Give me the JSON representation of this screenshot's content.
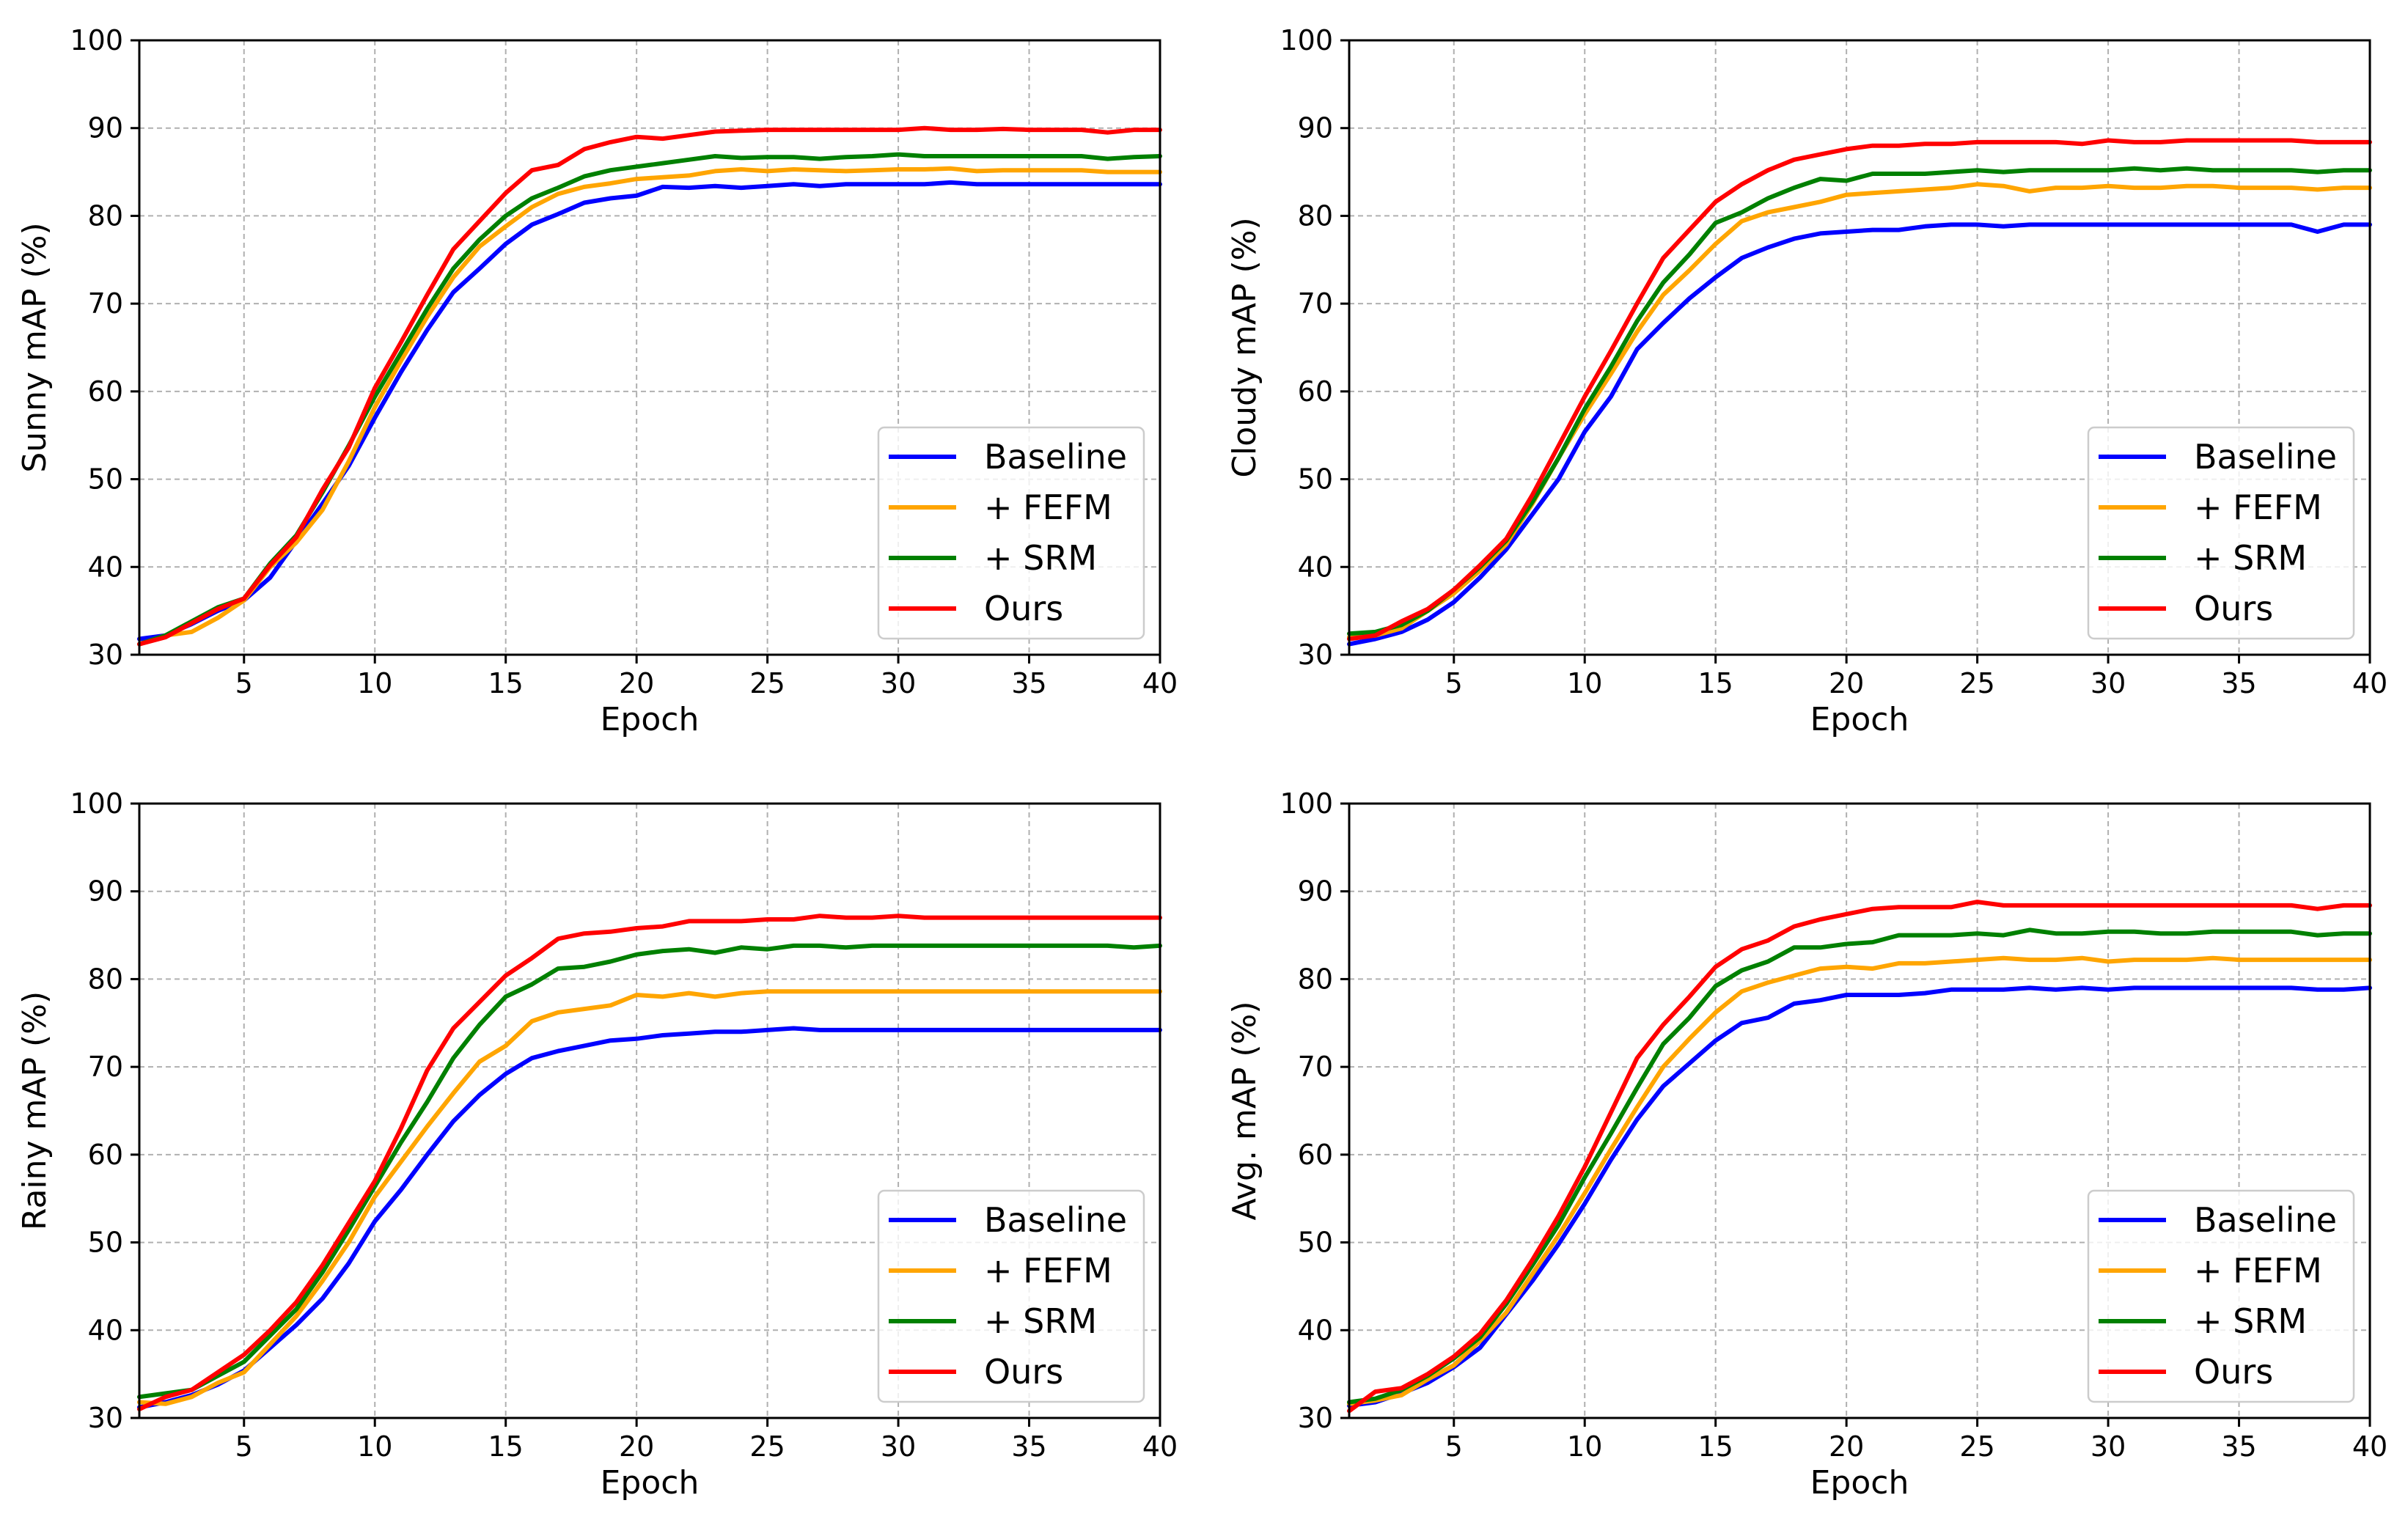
{
  "colors": {
    "baseline": "#0000ff",
    "fefm": "#ffa500",
    "srm": "#008000",
    "ours": "#ff0000"
  },
  "chart_data": [
    {
      "type": "line",
      "xlabel": "Epoch",
      "ylabel": "Sunny mAP (%)",
      "xlim": [
        1,
        40
      ],
      "ylim": [
        30,
        100
      ],
      "xticks": [
        5,
        10,
        15,
        20,
        25,
        30,
        35,
        40
      ],
      "yticks": [
        30,
        40,
        50,
        60,
        70,
        80,
        90,
        100
      ],
      "grid": true,
      "legend_position": "lower-right",
      "x": [
        1,
        2,
        3,
        4,
        5,
        6,
        7,
        8,
        9,
        10,
        11,
        12,
        13,
        14,
        15,
        16,
        17,
        18,
        19,
        20,
        21,
        22,
        23,
        24,
        25,
        26,
        27,
        28,
        29,
        30,
        31,
        32,
        33,
        34,
        35,
        36,
        37,
        38,
        39,
        40
      ],
      "series": [
        {
          "name": "Baseline",
          "color": "#0000ff",
          "values": [
            31.8,
            32.2,
            33.5,
            35.0,
            36.2,
            38.8,
            43.0,
            47.2,
            51.5,
            57.0,
            62.2,
            67.0,
            71.3,
            74.0,
            76.8,
            79.0,
            80.2,
            81.5,
            82.0,
            82.3,
            83.3,
            83.2,
            83.4,
            83.2,
            83.4,
            83.6,
            83.4,
            83.6,
            83.6,
            83.6,
            83.6,
            83.8,
            83.6,
            83.6,
            83.6,
            83.6,
            83.6,
            83.6,
            83.6,
            83.6
          ]
        },
        {
          "name": "+ FEFM",
          "color": "#ffa500",
          "values": [
            31.2,
            32.2,
            32.6,
            34.2,
            36.2,
            40.0,
            42.8,
            46.5,
            52.0,
            58.2,
            63.5,
            68.5,
            73.0,
            76.5,
            78.8,
            81.0,
            82.5,
            83.3,
            83.7,
            84.2,
            84.4,
            84.6,
            85.1,
            85.3,
            85.1,
            85.3,
            85.2,
            85.1,
            85.2,
            85.3,
            85.3,
            85.4,
            85.1,
            85.2,
            85.2,
            85.2,
            85.2,
            85.0,
            85.0,
            85.0
          ]
        },
        {
          "name": "+ SRM",
          "color": "#008000",
          "values": [
            31.2,
            32.2,
            33.8,
            35.4,
            36.4,
            40.4,
            43.6,
            48.5,
            53.8,
            59.4,
            64.4,
            69.4,
            74.0,
            77.3,
            80.0,
            82.0,
            83.2,
            84.5,
            85.2,
            85.6,
            86.0,
            86.4,
            86.8,
            86.6,
            86.7,
            86.7,
            86.5,
            86.7,
            86.8,
            87.0,
            86.8,
            86.8,
            86.8,
            86.8,
            86.8,
            86.8,
            86.8,
            86.5,
            86.7,
            86.8
          ]
        },
        {
          "name": "Ours",
          "color": "#ff0000",
          "values": [
            31.2,
            32.0,
            33.6,
            35.2,
            36.4,
            40.2,
            43.4,
            48.8,
            53.6,
            60.4,
            65.6,
            71.0,
            76.2,
            79.4,
            82.6,
            85.2,
            85.8,
            87.6,
            88.4,
            89.0,
            88.8,
            89.2,
            89.6,
            89.7,
            89.8,
            89.8,
            89.8,
            89.8,
            89.8,
            89.8,
            90.0,
            89.8,
            89.8,
            89.9,
            89.8,
            89.8,
            89.8,
            89.5,
            89.8,
            89.8
          ]
        }
      ]
    },
    {
      "type": "line",
      "xlabel": "Epoch",
      "ylabel": "Cloudy mAP (%)",
      "xlim": [
        1,
        40
      ],
      "ylim": [
        30,
        100
      ],
      "xticks": [
        5,
        10,
        15,
        20,
        25,
        30,
        35,
        40
      ],
      "yticks": [
        30,
        40,
        50,
        60,
        70,
        80,
        90,
        100
      ],
      "grid": true,
      "legend_position": "lower-right",
      "x": [
        1,
        2,
        3,
        4,
        5,
        6,
        7,
        8,
        9,
        10,
        11,
        12,
        13,
        14,
        15,
        16,
        17,
        18,
        19,
        20,
        21,
        22,
        23,
        24,
        25,
        26,
        27,
        28,
        29,
        30,
        31,
        32,
        33,
        34,
        35,
        36,
        37,
        38,
        39,
        40
      ],
      "series": [
        {
          "name": "Baseline",
          "color": "#0000ff",
          "values": [
            31.2,
            31.8,
            32.6,
            34.0,
            36.0,
            38.8,
            42.0,
            46.0,
            50.0,
            55.4,
            59.4,
            64.8,
            67.8,
            70.6,
            73.0,
            75.2,
            76.4,
            77.4,
            78.0,
            78.2,
            78.4,
            78.4,
            78.8,
            79.0,
            79.0,
            78.8,
            79.0,
            79.0,
            79.0,
            79.0,
            79.0,
            79.0,
            79.0,
            79.0,
            79.0,
            79.0,
            79.0,
            78.2,
            79.0,
            79.0
          ]
        },
        {
          "name": "+ FEFM",
          "color": "#ffa500",
          "values": [
            32.0,
            32.2,
            33.0,
            35.0,
            37.0,
            39.6,
            42.6,
            47.2,
            52.4,
            57.4,
            62.0,
            66.8,
            71.0,
            73.8,
            76.8,
            79.4,
            80.4,
            81.0,
            81.6,
            82.4,
            82.6,
            82.8,
            83.0,
            83.2,
            83.6,
            83.4,
            82.8,
            83.2,
            83.2,
            83.4,
            83.2,
            83.2,
            83.4,
            83.4,
            83.2,
            83.2,
            83.2,
            83.0,
            83.2,
            83.2
          ]
        },
        {
          "name": "+ SRM",
          "color": "#008000",
          "values": [
            32.4,
            32.6,
            33.4,
            35.0,
            37.4,
            40.0,
            43.0,
            47.4,
            52.4,
            58.0,
            62.8,
            68.0,
            72.4,
            75.6,
            79.2,
            80.4,
            82.0,
            83.2,
            84.2,
            84.0,
            84.8,
            84.8,
            84.8,
            85.0,
            85.2,
            85.0,
            85.2,
            85.2,
            85.2,
            85.2,
            85.4,
            85.2,
            85.4,
            85.2,
            85.2,
            85.2,
            85.2,
            85.0,
            85.2,
            85.2
          ]
        },
        {
          "name": "Ours",
          "color": "#ff0000",
          "values": [
            31.8,
            32.2,
            33.8,
            35.2,
            37.4,
            40.2,
            43.2,
            48.2,
            53.8,
            59.4,
            64.6,
            70.0,
            75.2,
            78.4,
            81.6,
            83.6,
            85.2,
            86.4,
            87.0,
            87.6,
            88.0,
            88.0,
            88.2,
            88.2,
            88.4,
            88.4,
            88.4,
            88.4,
            88.2,
            88.6,
            88.4,
            88.4,
            88.6,
            88.6,
            88.6,
            88.6,
            88.6,
            88.4,
            88.4,
            88.4
          ]
        }
      ]
    },
    {
      "type": "line",
      "xlabel": "Epoch",
      "ylabel": "Rainy mAP (%)",
      "xlim": [
        1,
        40
      ],
      "ylim": [
        30,
        100
      ],
      "xticks": [
        5,
        10,
        15,
        20,
        25,
        30,
        35,
        40
      ],
      "yticks": [
        30,
        40,
        50,
        60,
        70,
        80,
        90,
        100
      ],
      "grid": true,
      "legend_position": "lower-right",
      "x": [
        1,
        2,
        3,
        4,
        5,
        6,
        7,
        8,
        9,
        10,
        11,
        12,
        13,
        14,
        15,
        16,
        17,
        18,
        19,
        20,
        21,
        22,
        23,
        24,
        25,
        26,
        27,
        28,
        29,
        30,
        31,
        32,
        33,
        34,
        35,
        36,
        37,
        38,
        39,
        40
      ],
      "series": [
        {
          "name": "Baseline",
          "color": "#0000ff",
          "values": [
            31.2,
            31.8,
            32.6,
            33.8,
            35.4,
            38.0,
            40.6,
            43.6,
            47.6,
            52.4,
            56.0,
            60.0,
            63.8,
            66.8,
            69.2,
            71.0,
            71.8,
            72.4,
            73.0,
            73.2,
            73.6,
            73.8,
            74.0,
            74.0,
            74.2,
            74.4,
            74.2,
            74.2,
            74.2,
            74.2,
            74.2,
            74.2,
            74.2,
            74.2,
            74.2,
            74.2,
            74.2,
            74.2,
            74.2,
            74.2
          ]
        },
        {
          "name": "+ FEFM",
          "color": "#ffa500",
          "values": [
            31.8,
            31.6,
            32.4,
            34.0,
            35.2,
            38.4,
            41.6,
            45.6,
            50.0,
            55.2,
            59.2,
            63.2,
            67.0,
            70.6,
            72.4,
            75.2,
            76.2,
            76.6,
            77.0,
            78.2,
            78.0,
            78.4,
            78.0,
            78.4,
            78.6,
            78.6,
            78.6,
            78.6,
            78.6,
            78.6,
            78.6,
            78.6,
            78.6,
            78.6,
            78.6,
            78.6,
            78.6,
            78.6,
            78.6,
            78.6
          ]
        },
        {
          "name": "+ SRM",
          "color": "#008000",
          "values": [
            32.4,
            32.8,
            33.2,
            34.8,
            36.4,
            39.4,
            42.4,
            46.6,
            51.4,
            56.4,
            61.4,
            66.0,
            71.0,
            74.8,
            78.0,
            79.4,
            81.2,
            81.4,
            82.0,
            82.8,
            83.2,
            83.4,
            83.0,
            83.6,
            83.4,
            83.8,
            83.8,
            83.6,
            83.8,
            83.8,
            83.8,
            83.8,
            83.8,
            83.8,
            83.8,
            83.8,
            83.8,
            83.8,
            83.6,
            83.8
          ]
        },
        {
          "name": "Ours",
          "color": "#ff0000",
          "values": [
            31.0,
            32.4,
            33.2,
            35.2,
            37.2,
            40.0,
            43.2,
            47.4,
            52.2,
            57.0,
            63.0,
            69.6,
            74.4,
            77.4,
            80.4,
            82.4,
            84.6,
            85.2,
            85.4,
            85.8,
            86.0,
            86.6,
            86.6,
            86.6,
            86.8,
            86.8,
            87.2,
            87.0,
            87.0,
            87.2,
            87.0,
            87.0,
            87.0,
            87.0,
            87.0,
            87.0,
            87.0,
            87.0,
            87.0,
            87.0
          ]
        }
      ]
    },
    {
      "type": "line",
      "xlabel": "Epoch",
      "ylabel": "Avg. mAP (%)",
      "xlim": [
        1,
        40
      ],
      "ylim": [
        30,
        100
      ],
      "xticks": [
        5,
        10,
        15,
        20,
        25,
        30,
        35,
        40
      ],
      "yticks": [
        30,
        40,
        50,
        60,
        70,
        80,
        90,
        100
      ],
      "grid": true,
      "legend_position": "lower-right",
      "x": [
        1,
        2,
        3,
        4,
        5,
        6,
        7,
        8,
        9,
        10,
        11,
        12,
        13,
        14,
        15,
        16,
        17,
        18,
        19,
        20,
        21,
        22,
        23,
        24,
        25,
        26,
        27,
        28,
        29,
        30,
        31,
        32,
        33,
        34,
        35,
        36,
        37,
        38,
        39,
        40
      ],
      "series": [
        {
          "name": "Baseline",
          "color": "#0000ff",
          "values": [
            31.4,
            31.8,
            32.8,
            34.0,
            35.8,
            38.0,
            41.8,
            45.6,
            49.8,
            54.4,
            59.4,
            64.0,
            67.8,
            70.4,
            73.0,
            75.0,
            75.6,
            77.2,
            77.6,
            78.2,
            78.2,
            78.2,
            78.4,
            78.8,
            78.8,
            78.8,
            79.0,
            78.8,
            79.0,
            78.8,
            79.0,
            79.0,
            79.0,
            79.0,
            79.0,
            79.0,
            79.0,
            78.8,
            78.8,
            79.0
          ]
        },
        {
          "name": "+ FEFM",
          "color": "#ffa500",
          "values": [
            31.6,
            32.0,
            32.6,
            34.4,
            36.0,
            38.8,
            42.0,
            46.4,
            50.8,
            55.6,
            60.6,
            65.4,
            70.0,
            73.2,
            76.2,
            78.6,
            79.6,
            80.4,
            81.2,
            81.4,
            81.2,
            81.8,
            81.8,
            82.0,
            82.2,
            82.4,
            82.2,
            82.2,
            82.4,
            82.0,
            82.2,
            82.2,
            82.2,
            82.4,
            82.2,
            82.2,
            82.2,
            82.2,
            82.2,
            82.2
          ]
        },
        {
          "name": "+ SRM",
          "color": "#008000",
          "values": [
            31.8,
            32.2,
            33.2,
            34.8,
            36.8,
            39.2,
            43.0,
            47.4,
            52.0,
            57.4,
            62.4,
            67.6,
            72.6,
            75.6,
            79.2,
            81.0,
            82.0,
            83.6,
            83.6,
            84.0,
            84.2,
            85.0,
            85.0,
            85.0,
            85.2,
            85.0,
            85.6,
            85.2,
            85.2,
            85.4,
            85.4,
            85.2,
            85.2,
            85.4,
            85.4,
            85.4,
            85.4,
            85.0,
            85.2,
            85.2
          ]
        },
        {
          "name": "Ours",
          "color": "#ff0000",
          "values": [
            30.8,
            33.0,
            33.4,
            35.0,
            37.0,
            39.6,
            43.4,
            48.0,
            53.0,
            58.6,
            64.8,
            71.0,
            74.8,
            78.0,
            81.4,
            83.4,
            84.4,
            86.0,
            86.8,
            87.4,
            88.0,
            88.2,
            88.2,
            88.2,
            88.8,
            88.4,
            88.4,
            88.4,
            88.4,
            88.4,
            88.4,
            88.4,
            88.4,
            88.4,
            88.4,
            88.4,
            88.4,
            88.0,
            88.4,
            88.4
          ]
        }
      ]
    }
  ]
}
